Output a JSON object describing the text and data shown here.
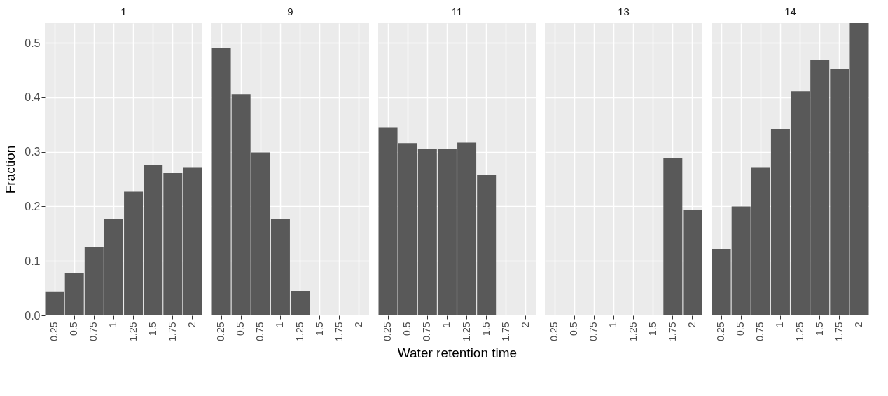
{
  "chart_data": [
    {
      "type": "bar",
      "title": "1",
      "ylabel": "Fraction",
      "categories": [
        "0.25",
        "0.5",
        "0.75",
        "1",
        "1.25",
        "1.5",
        "1.75",
        "2"
      ],
      "values": [
        0.044,
        0.078,
        0.126,
        0.177,
        0.227,
        0.275,
        0.261,
        0.272
      ],
      "color": "#595959",
      "ylim": [
        0,
        0.536
      ],
      "yticks": [
        {
          "value": 0,
          "label": "0.0"
        },
        0.1,
        0.2,
        0.3,
        0.4,
        0.5
      ],
      "grid": true
    },
    {
      "type": "bar",
      "title": "9",
      "categories": [
        "0.25",
        "0.5",
        "0.75",
        "1",
        "1.25",
        "1.5",
        "1.75",
        "2"
      ],
      "values": [
        0.49,
        0.406,
        0.299,
        0.176,
        0.045,
        null,
        null,
        null
      ],
      "color": "#595959",
      "ylim": [
        0,
        0.536
      ],
      "yticks": [
        0.1,
        0.2,
        0.3,
        0.4,
        0.5
      ],
      "grid": true,
      "tick_labels": "x"
    },
    {
      "type": "bar",
      "title": "11",
      "xlabel": "Water retention time",
      "categories": [
        "0.25",
        "0.5",
        "0.75",
        "1",
        "1.25",
        "1.5",
        "1.75",
        "2"
      ],
      "values": [
        0.345,
        0.316,
        0.305,
        0.306,
        0.317,
        0.257,
        null,
        null
      ],
      "color": "#595959",
      "ylim": [
        0,
        0.536
      ],
      "yticks": [
        0.1,
        0.2,
        0.3,
        0.4,
        0.5
      ],
      "grid": true,
      "tick_labels": "x"
    },
    {
      "type": "bar",
      "title": "13",
      "categories": [
        "0.25",
        "0.5",
        "0.75",
        "1",
        "1.25",
        "1.5",
        "1.75",
        "2"
      ],
      "values": [
        null,
        null,
        null,
        null,
        null,
        null,
        0.289,
        0.193
      ],
      "color": "#595959",
      "ylim": [
        0,
        0.536
      ],
      "yticks": [
        0.1,
        0.2,
        0.3,
        0.4,
        0.5
      ],
      "grid": true,
      "tick_labels": "x"
    },
    {
      "type": "bar",
      "title": "14",
      "categories": [
        "0.25",
        "0.5",
        "0.75",
        "1",
        "1.25",
        "1.5",
        "1.75",
        "2"
      ],
      "values": [
        0.122,
        0.2,
        0.272,
        0.342,
        0.411,
        0.468,
        0.452,
        0.536
      ],
      "color": "#595959",
      "ylim": [
        0,
        0.536
      ],
      "yticks": [
        0.1,
        0.2,
        0.3,
        0.4,
        0.5
      ],
      "grid": true,
      "tick_labels": "x"
    }
  ]
}
